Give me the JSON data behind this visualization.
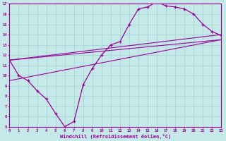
{
  "xlabel": "Windchill (Refroidissement éolien,°C)",
  "bg_color": "#c5e8e8",
  "grid_color": "#a8d4d4",
  "line_color": "#990099",
  "xlim": [
    0,
    23
  ],
  "ylim": [
    5,
    17
  ],
  "xticks": [
    0,
    1,
    2,
    3,
    4,
    5,
    6,
    7,
    8,
    9,
    10,
    11,
    12,
    13,
    14,
    15,
    16,
    17,
    18,
    19,
    20,
    21,
    22,
    23
  ],
  "yticks": [
    5,
    6,
    7,
    8,
    9,
    10,
    11,
    12,
    13,
    14,
    15,
    16,
    17
  ],
  "curve_x": [
    0,
    1,
    2,
    3,
    4,
    5,
    6,
    7,
    8,
    9,
    10,
    11,
    12,
    13,
    14,
    15,
    16,
    17,
    18,
    19,
    20,
    21,
    22,
    23
  ],
  "curve_y": [
    11.5,
    10.0,
    9.5,
    8.5,
    7.7,
    6.3,
    5.0,
    5.5,
    9.1,
    10.7,
    12.0,
    13.0,
    13.3,
    15.0,
    16.5,
    16.7,
    17.2,
    16.8,
    16.7,
    16.5,
    16.0,
    15.0,
    14.3,
    13.9
  ],
  "line1_x": [
    0,
    23
  ],
  "line1_y": [
    11.5,
    14.0
  ],
  "line2_x": [
    0,
    23
  ],
  "line2_y": [
    11.5,
    13.5
  ],
  "line3_x": [
    0,
    23
  ],
  "line3_y": [
    9.5,
    13.5
  ]
}
